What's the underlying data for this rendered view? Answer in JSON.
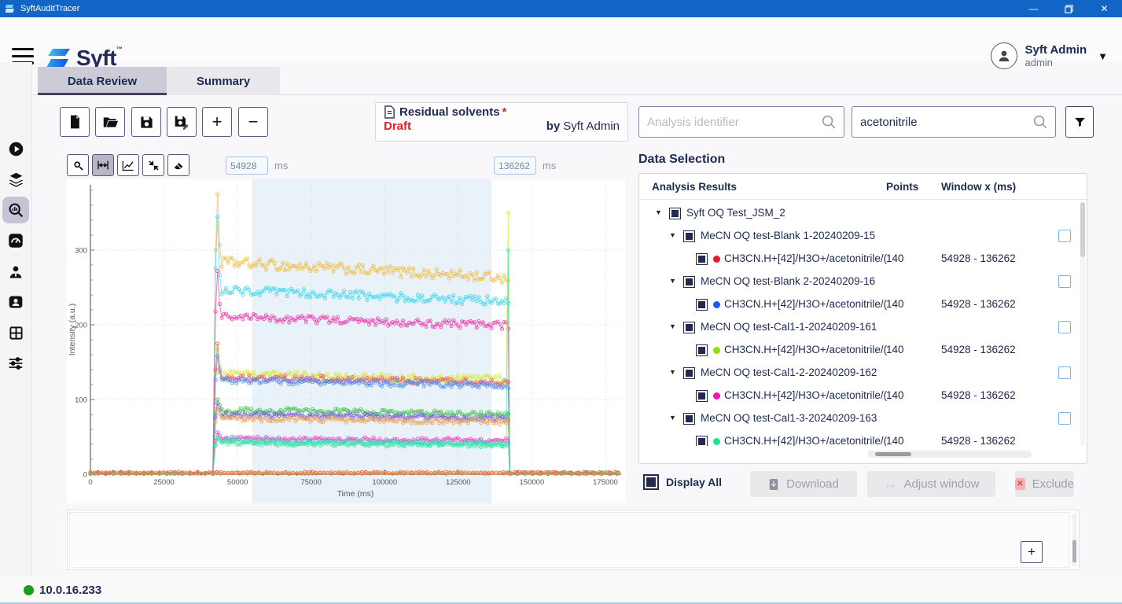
{
  "titlebar": {
    "app_title": "SyftAuditTracer",
    "minimize": "—",
    "maximize": "",
    "close": "✕"
  },
  "header": {
    "logo_text": "Syft",
    "logo_tm": "™",
    "user_name": "Syft Admin",
    "user_role": "admin",
    "caret": "▼"
  },
  "tabs": [
    {
      "label": "Data Review",
      "active": true
    },
    {
      "label": "Summary",
      "active": false
    }
  ],
  "toolbar": {
    "add_label": "+",
    "remove_label": "−"
  },
  "method": {
    "name": "Residual solvents",
    "required_mark": "*",
    "status": "Draft",
    "by_label": "by",
    "author": "Syft Admin"
  },
  "search": {
    "analysis_placeholder": "Analysis identifier",
    "compound_value": "acetonitrile"
  },
  "chart_controls": {
    "window_start": "54928",
    "window_end": "136262",
    "unit": "ms"
  },
  "data_selection": {
    "title": "Data Selection",
    "columns": [
      "Analysis Results",
      "Points",
      "Window x (ms)"
    ],
    "display_all_label": "Display All",
    "buttons": {
      "download": "Download",
      "adjust": "Adjust window",
      "exclude": "Exclude"
    },
    "tree_arrow": "▼",
    "rows": [
      {
        "type": "group",
        "lvl": 0,
        "label": "Syft OQ Test_JSM_2"
      },
      {
        "type": "group",
        "lvl": 1,
        "label": "MeCN OQ test-Blank 1-20240209-15",
        "selectable": true
      },
      {
        "type": "channel",
        "lvl": 2,
        "dot": "#e8192c",
        "label": "CH3CN.H+[42]/H3O+/acetonitrile/(",
        "points": "140",
        "window": "54928 - 136262"
      },
      {
        "type": "group",
        "lvl": 1,
        "label": "MeCN OQ test-Blank 2-20240209-16",
        "selectable": true
      },
      {
        "type": "channel",
        "lvl": 2,
        "dot": "#2457f0",
        "label": "CH3CN.H+[42]/H3O+/acetonitrile/(",
        "points": "140",
        "window": "54928 - 136262"
      },
      {
        "type": "group",
        "lvl": 1,
        "label": "MeCN OQ test-Cal1-1-20240209-161",
        "selectable": true
      },
      {
        "type": "channel",
        "lvl": 2,
        "dot": "#8ce00a",
        "label": "CH3CN.H+[42]/H3O+/acetonitrile/(",
        "points": "140",
        "window": "54928 - 136262"
      },
      {
        "type": "group",
        "lvl": 1,
        "label": "MeCN OQ test-Cal1-2-20240209-162",
        "selectable": true
      },
      {
        "type": "channel",
        "lvl": 2,
        "dot": "#f014b4",
        "label": "CH3CN.H+[42]/H3O+/acetonitrile/(",
        "points": "140",
        "window": "54928 - 136262"
      },
      {
        "type": "group",
        "lvl": 1,
        "label": "MeCN OQ test-Cal1-3-20240209-163",
        "selectable": true
      },
      {
        "type": "channel",
        "lvl": 2,
        "dot": "#16e890",
        "label": "CH3CN.H+[42]/H3O+/acetonitrile/(",
        "points": "140",
        "window": "54928 - 136262"
      }
    ]
  },
  "bottom_panel": {
    "add_label": "+"
  },
  "statusbar": {
    "ip": "10.0.16.233",
    "status_color": "#18a018"
  },
  "chart_data": {
    "type": "line",
    "xlabel": "Time (ms)",
    "ylabel": "Intensity (a.u.)",
    "xlim": [
      0,
      180500
    ],
    "ylim": [
      0,
      390
    ],
    "xticks": [
      0,
      25000,
      50000,
      75000,
      100000,
      125000,
      150000,
      175000
    ],
    "yticks": [
      0,
      100,
      200,
      300
    ],
    "grid": true,
    "legend": false,
    "selection_window_ms": [
      54928,
      136262
    ],
    "selection_fill": "#dbeaf3",
    "signal_on_ms": 42500,
    "signal_off_ms": 142000,
    "points_per_trace": 140,
    "series": [
      {
        "name": "gold",
        "color": "#f2b838",
        "plateau_start": 284,
        "plateau_end": 263,
        "noise": 7,
        "onset_spike": 375
      },
      {
        "name": "cyan",
        "color": "#38d4f0",
        "plateau_start": 247,
        "plateau_end": 231,
        "noise": 6,
        "onset_spike": 345
      },
      {
        "name": "magenta",
        "color": "#ee30a8",
        "plateau_start": 211,
        "plateau_end": 199,
        "noise": 5,
        "onset_spike": 272
      },
      {
        "name": "chartreuse",
        "color": "#d8e430",
        "plateau_start": 134,
        "plateau_end": 127,
        "noise": 5,
        "onset_spike": 168,
        "end_spike": 350
      },
      {
        "name": "crimson",
        "color": "#e05568",
        "plateau_start": 130,
        "plateau_end": 123,
        "noise": 4,
        "onset_spike": 175
      },
      {
        "name": "blue",
        "color": "#4a8cf0",
        "plateau_start": 126,
        "plateau_end": 119,
        "noise": 4,
        "onset_spike": 158
      },
      {
        "name": "green",
        "color": "#3cc04c",
        "plateau_start": 86,
        "plateau_end": 80,
        "noise": 4,
        "onset_spike": 100
      },
      {
        "name": "purple",
        "color": "#7a54dc",
        "plateau_start": 80,
        "plateau_end": 75,
        "noise": 3.5,
        "onset_spike": 95
      },
      {
        "name": "orange",
        "color": "#eda04e",
        "plateau_start": 75,
        "plateau_end": 70,
        "noise": 3.5,
        "onset_spike": 88
      },
      {
        "name": "pink",
        "color": "#f038bc",
        "plateau_start": 48,
        "plateau_end": 45,
        "noise": 3,
        "onset_spike": 56
      },
      {
        "name": "teal",
        "color": "#30d8cc",
        "plateau_start": 44,
        "plateau_end": 41,
        "noise": 3,
        "onset_spike": 50
      },
      {
        "name": "springgreen",
        "color": "#34e89c",
        "plateau_start": 42,
        "plateau_end": 39,
        "noise": 3,
        "onset_spike": 48,
        "end_spike": 300
      },
      {
        "name": "baseline-red",
        "color": "#e04028",
        "plateau_start": 2,
        "plateau_end": 2,
        "noise": 1.2,
        "full_range": true
      },
      {
        "name": "baseline-orange",
        "color": "#f0a040",
        "plateau_start": 1.5,
        "plateau_end": 1.5,
        "noise": 1,
        "full_range": true
      }
    ]
  }
}
